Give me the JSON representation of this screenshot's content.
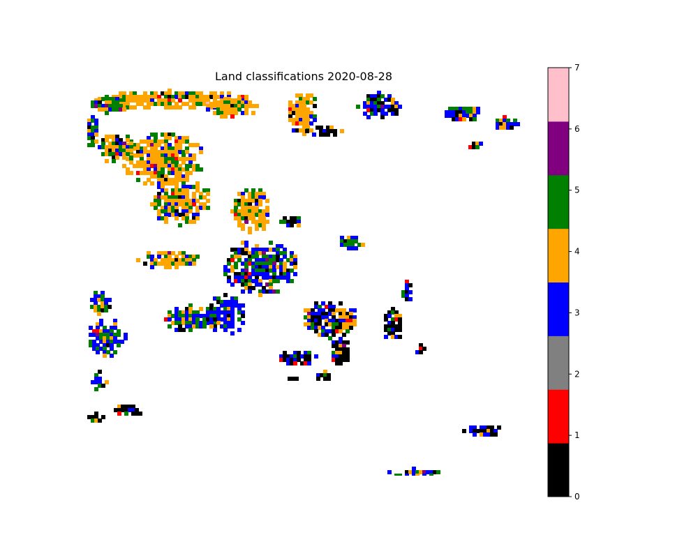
{
  "chart_data": {
    "type": "heatmap",
    "title": "Land classifications 2020-08-28",
    "xlabel": "",
    "ylabel": "",
    "axes_visible": false,
    "classes": [
      0,
      1,
      2,
      3,
      4,
      5,
      6,
      7
    ],
    "class_colors": [
      "#000000",
      "#ff0000",
      "#808080",
      "#0000ff",
      "#ffa500",
      "#008000",
      "#800080",
      "#ffc0cb"
    ],
    "background": "#ffffff",
    "colorbar": {
      "position": "right",
      "ticks": [
        "0",
        "1",
        "2",
        "3",
        "4",
        "5",
        "6",
        "7"
      ],
      "range": [
        0,
        7
      ]
    }
  }
}
